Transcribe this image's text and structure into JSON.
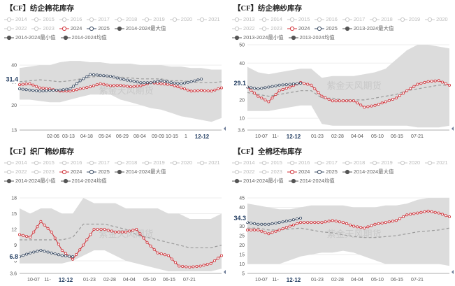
{
  "colors": {
    "c2024": "#d0333a",
    "c2025": "#3d4e66",
    "avg": "#9a9a9a",
    "band": "#dcdcdc",
    "dim": "#c8c8c8"
  },
  "charts": [
    {
      "title": "【CF】纺企棉花库存",
      "legend": [
        {
          "label": "2014",
          "style": "dim"
        },
        {
          "label": "2015",
          "style": "dim"
        },
        {
          "label": "2016",
          "style": "dim"
        },
        {
          "label": "2017",
          "style": "dim"
        },
        {
          "label": "2018",
          "style": "dim"
        },
        {
          "label": "2019",
          "style": "dim"
        },
        {
          "label": "2020",
          "style": "dim"
        },
        {
          "label": "2021",
          "style": "dim"
        },
        {
          "label": "2022",
          "style": "dim"
        },
        {
          "label": "2023",
          "style": "dim"
        },
        {
          "label": "2024",
          "style": "red"
        },
        {
          "label": "2025",
          "style": "navy"
        },
        {
          "label": "2014-2024最大值",
          "style": "dark"
        },
        {
          "label": "2014-2024最小值",
          "style": "dark"
        },
        {
          "label": "2014-2024均值",
          "style": "dark"
        }
      ],
      "watermark": "紫金天风期货",
      "current_marker": "31.4",
      "current_value": 31.4,
      "y_ticks": [
        "40",
        "30",
        "20",
        "13"
      ],
      "x_ticks": [
        "02-06",
        "03-13",
        "04-18",
        "05-24",
        "06-29",
        "08-04",
        "09-09",
        "10-15",
        "1"
      ],
      "x_highlight": "12-12",
      "chart_data": {
        "type": "line",
        "title": "【CF】纺企棉花库存",
        "x": [
          "12-12",
          "01-01",
          "01-20",
          "02-06",
          "02-20",
          "03-13",
          "03-28",
          "04-18",
          "05-02",
          "05-24",
          "06-10",
          "06-29",
          "07-15",
          "08-04",
          "08-20",
          "09-09",
          "09-25",
          "10-15",
          "10-31",
          "11-20",
          "12-12"
        ],
        "ylim": [
          13,
          48
        ],
        "yscale": "log",
        "series": [
          {
            "name": "2024",
            "values": [
              28.5,
              29,
              27,
              26.5,
              25.5,
              25.5,
              26.5,
              27.5,
              29,
              28,
              28.2,
              27.5,
              28,
              29.5,
              29,
              28.5,
              27,
              25.5,
              25.8,
              25.5,
              27
            ]
          },
          {
            "name": "2025",
            "values": [
              26.5,
              26,
              25.5,
              25.8,
              26,
              26.5,
              30.5,
              34,
              33.5,
              33,
              31.5,
              30.5,
              29.5,
              29.5,
              30.5,
              29.5,
              29,
              30,
              31.4,
              null,
              null
            ]
          },
          {
            "name": "2014-2024均值",
            "values": [
              30,
              30.5,
              31,
              30.5,
              30,
              30.5,
              31.5,
              32.5,
              33,
              32.5,
              32.5,
              32,
              31.5,
              31.5,
              31.5,
              30.5,
              30.5,
              30,
              29.5,
              29.5,
              30
            ]
          },
          {
            "name": "2014-2024最大值",
            "values": [
              38,
              39,
              40,
              40,
              42,
              43,
              43,
              42,
              42,
              41,
              41,
              41,
              40,
              40,
              40,
              39,
              39,
              38,
              38,
              37,
              37
            ]
          },
          {
            "name": "2014-2024最小值",
            "values": [
              22,
              22,
              21.5,
              21,
              21,
              22,
              23,
              24,
              24,
              24,
              22,
              21,
              20,
              19,
              18.5,
              17.5,
              16.5,
              16,
              15.5,
              15,
              16
            ]
          }
        ]
      }
    },
    {
      "title": "【CF】纺企棉纱库存",
      "legend": [
        {
          "label": "2013",
          "style": "dim"
        },
        {
          "label": "2014",
          "style": "dim"
        },
        {
          "label": "2015",
          "style": "dim"
        },
        {
          "label": "2016",
          "style": "dim"
        },
        {
          "label": "2017",
          "style": "dim"
        },
        {
          "label": "2018",
          "style": "dim"
        },
        {
          "label": "2019",
          "style": "dim"
        },
        {
          "label": "2020",
          "style": "dim"
        },
        {
          "label": "2022",
          "style": "dim"
        },
        {
          "label": "2023",
          "style": "dim"
        },
        {
          "label": "2024",
          "style": "red"
        },
        {
          "label": "2025",
          "style": "navy"
        },
        {
          "label": "2013-2024最大值",
          "style": "dark"
        },
        {
          "label": "2013-2024最小值",
          "style": "dark"
        },
        {
          "label": "2013-2024均值",
          "style": "dark"
        }
      ],
      "watermark": "紫金天风期货",
      "current_marker": "29.1",
      "current_value": 29.1,
      "y_ticks": [
        "50",
        "40",
        "30",
        "20",
        "10",
        "3.6"
      ],
      "x_ticks": [
        "10-07",
        "11-",
        "01-23",
        "02-28",
        "04-04",
        "05-10",
        "06-15",
        "07-21"
      ],
      "x_highlight": "12-12",
      "chart_data": {
        "type": "line",
        "title": "【CF】纺企棉纱库存",
        "x": [
          "09-01",
          "09-20",
          "10-07",
          "10-25",
          "11-10",
          "12-12",
          "01-01",
          "01-23",
          "02-10",
          "02-28",
          "03-15",
          "04-04",
          "04-20",
          "05-10",
          "05-25",
          "06-15",
          "07-01",
          "07-21",
          "08-10",
          "08-31"
        ],
        "ylim": [
          3.6,
          50
        ],
        "series": [
          {
            "name": "2024",
            "values": [
              27,
              22,
              19,
              25,
              27,
              29.5,
              28,
              22,
              19.5,
              19.5,
              19.5,
              16,
              17,
              19,
              21,
              25,
              28.5,
              30,
              30.5,
              28
            ]
          },
          {
            "name": "2025",
            "values": [
              27,
              26,
              27,
              28,
              28.5,
              29.1,
              null,
              null,
              null,
              null,
              null,
              null,
              null,
              null,
              null,
              null,
              null,
              null,
              null,
              null
            ]
          },
          {
            "name": "2013-2024均值",
            "values": [
              24,
              23,
              22,
              23,
              24,
              25,
              25,
              21,
              21,
              20,
              20,
              20,
              21,
              22,
              23,
              25,
              26,
              27,
              28,
              28
            ]
          },
          {
            "name": "2013-2024最大值",
            "values": [
              38,
              35,
              34,
              35,
              36,
              37,
              37,
              32,
              33,
              33,
              33,
              34,
              35,
              37,
              42,
              47,
              50,
              50,
              49,
              48
            ]
          },
          {
            "name": "2013-2024最小值",
            "values": [
              14,
              14,
              14,
              15,
              16,
              17,
              17,
              7,
              6,
              6,
              6,
              6,
              6,
              6,
              6,
              6,
              5,
              5,
              5,
              6
            ]
          }
        ]
      }
    },
    {
      "title": "【CF】织厂棉纱库存",
      "legend": [
        {
          "label": "2014",
          "style": "dim"
        },
        {
          "label": "2015",
          "style": "dim"
        },
        {
          "label": "2016",
          "style": "dim"
        },
        {
          "label": "2017",
          "style": "dim"
        },
        {
          "label": "2018",
          "style": "dim"
        },
        {
          "label": "2019",
          "style": "dim"
        },
        {
          "label": "2020",
          "style": "dim"
        },
        {
          "label": "2021",
          "style": "dim"
        },
        {
          "label": "2022",
          "style": "dim"
        },
        {
          "label": "2023",
          "style": "dim"
        },
        {
          "label": "2024",
          "style": "red"
        },
        {
          "label": "2025",
          "style": "navy"
        },
        {
          "label": "2014-2024最大值",
          "style": "dark"
        },
        {
          "label": "2014-2024最小值",
          "style": "dark"
        },
        {
          "label": "2014-2024均值",
          "style": "dark"
        }
      ],
      "watermark": "紫金天风期货",
      "current_marker": "6.8",
      "current_value": 6.8,
      "y_ticks": [
        "18",
        "15",
        "12",
        "9",
        "6",
        "3.6"
      ],
      "x_ticks": [
        "10-07",
        "11-",
        "01-23",
        "02-28",
        "04-04",
        "05-10",
        "06-15",
        "07-21"
      ],
      "x_highlight": "12-12",
      "chart_data": {
        "type": "line",
        "title": "【CF】织厂棉纱库存",
        "x": [
          "09-01",
          "09-20",
          "10-07",
          "10-25",
          "11-10",
          "12-12",
          "01-01",
          "01-23",
          "02-10",
          "02-28",
          "03-15",
          "04-04",
          "04-20",
          "05-10",
          "05-25",
          "06-15",
          "07-01",
          "07-21",
          "08-10",
          "08-31"
        ],
        "ylim": [
          3.6,
          18
        ],
        "series": [
          {
            "name": "2024",
            "values": [
              11,
              10.5,
              13.5,
              11.5,
              8,
              6.3,
              9,
              12,
              12,
              11.5,
              11.5,
              12,
              9.5,
              7.5,
              7,
              5,
              4.8,
              5,
              5.5,
              7
            ]
          },
          {
            "name": "2025",
            "values": [
              6.8,
              7.5,
              8,
              7.5,
              7,
              6.8,
              null,
              null,
              null,
              null,
              null,
              null,
              null,
              null,
              null,
              null,
              null,
              null,
              null,
              null
            ]
          },
          {
            "name": "2014-2024均值",
            "values": [
              10,
              10,
              10,
              10,
              10,
              10.5,
              13,
              13,
              13,
              12.5,
              12,
              11,
              10.5,
              10,
              9.5,
              9,
              8.5,
              8.5,
              8.5,
              9
            ]
          },
          {
            "name": "2014-2024最大值",
            "values": [
              16,
              15,
              16,
              16,
              15,
              15,
              18,
              17,
              17,
              17,
              16,
              16,
              16,
              16,
              15,
              15,
              14,
              14,
              14,
              15
            ]
          },
          {
            "name": "2014-2024最小值",
            "values": [
              5.5,
              5.5,
              5.5,
              5.5,
              5.5,
              6,
              7,
              8,
              8,
              7,
              6,
              5.5,
              5,
              4.5,
              4,
              4,
              4,
              4,
              4,
              4.5
            ]
          }
        ]
      }
    },
    {
      "title": "【CF】全棉坯布库存",
      "legend": [
        {
          "label": "2014",
          "style": "dim"
        },
        {
          "label": "2015",
          "style": "dim"
        },
        {
          "label": "2016",
          "style": "dim"
        },
        {
          "label": "2017",
          "style": "dim"
        },
        {
          "label": "2018",
          "style": "dim"
        },
        {
          "label": "2019",
          "style": "dim"
        },
        {
          "label": "2020",
          "style": "dim"
        },
        {
          "label": "2021",
          "style": "dim"
        },
        {
          "label": "2022",
          "style": "dim"
        },
        {
          "label": "2023",
          "style": "dim"
        },
        {
          "label": "2024",
          "style": "red"
        },
        {
          "label": "2025",
          "style": "navy"
        },
        {
          "label": "2014-2024最大值",
          "style": "dark"
        },
        {
          "label": "2014-2024最小值",
          "style": "dark"
        },
        {
          "label": "2014-2024均值",
          "style": "dark"
        }
      ],
      "watermark": "紫金天风期货",
      "current_marker": "34.3",
      "current_value": 34.3,
      "y_ticks": [
        "45",
        "40",
        "35",
        "30",
        "25",
        "20",
        "15",
        "10",
        "5"
      ],
      "x_ticks": [
        "10-07",
        "11-",
        "01-23",
        "02-28",
        "04-04",
        "05-10",
        "06-15",
        "07-21"
      ],
      "x_highlight": "12-12",
      "chart_data": {
        "type": "line",
        "title": "【CF】全棉坯布库存",
        "x": [
          "09-01",
          "09-20",
          "10-07",
          "10-25",
          "11-10",
          "12-12",
          "01-01",
          "01-23",
          "02-10",
          "02-28",
          "03-15",
          "04-04",
          "04-20",
          "05-10",
          "05-25",
          "06-15",
          "07-01",
          "07-21",
          "08-10",
          "08-31"
        ],
        "ylim": [
          5,
          45
        ],
        "series": [
          {
            "name": "2024",
            "values": [
              28,
              28,
              26,
              28,
              30,
              32,
              32,
              32,
              33,
              32,
              30,
              29,
              31,
              32,
              33,
              36,
              37,
              38,
              37,
              35
            ]
          },
          {
            "name": "2025",
            "values": [
              32,
              31,
              31,
              32,
              33,
              34.3,
              null,
              null,
              null,
              null,
              null,
              null,
              null,
              null,
              null,
              null,
              null,
              null,
              null,
              null
            ]
          },
          {
            "name": "2014-2024均值",
            "values": [
              29,
              29,
              28,
              28,
              28.5,
              29,
              28,
              27,
              26.5,
              25.5,
              24.5,
              24,
              24,
              24.5,
              25,
              26,
              27,
              27.5,
              28,
              29
            ]
          },
          {
            "name": "2014-2024最大值",
            "values": [
              42,
              41,
              40,
              39,
              39,
              40,
              41,
              41,
              41,
              41,
              40,
              40,
              40,
              41,
              41,
              42,
              44,
              45,
              45,
              45
            ]
          },
          {
            "name": "2014-2024最小值",
            "values": [
              10,
              10,
              10,
              10,
              12,
              14,
              15,
              16,
              16,
              17,
              16,
              14,
              12,
              10,
              10,
              10,
              10,
              10,
              10,
              9
            ]
          }
        ]
      }
    }
  ]
}
